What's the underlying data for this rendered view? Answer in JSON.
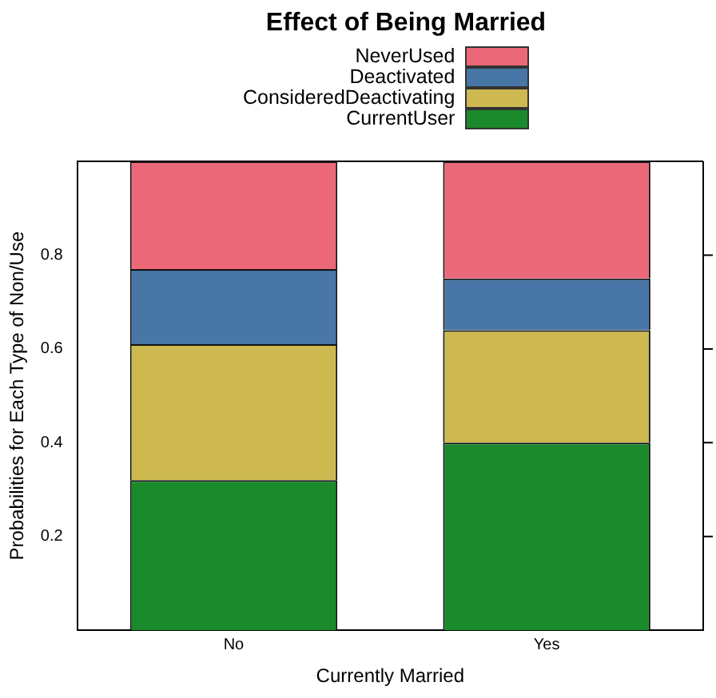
{
  "chart_data": {
    "type": "bar",
    "title": "Effect of Being Married",
    "xlabel": "Currently Married",
    "ylabel": "Probabilities for Each Type of Non/Use",
    "categories": [
      "No",
      "Yes"
    ],
    "stacked": true,
    "ylim": [
      0,
      1
    ],
    "yticks": [
      0.2,
      0.4,
      0.6,
      0.8
    ],
    "grid": false,
    "legend": "top",
    "series": [
      {
        "name": "CurrentUser",
        "color": "#1b8a2c",
        "values": [
          0.32,
          0.4
        ]
      },
      {
        "name": "ConsideredDeactivating",
        "color": "#cdb94f",
        "values": [
          0.29,
          0.24
        ]
      },
      {
        "name": "Deactivated",
        "color": "#4876a6",
        "values": [
          0.16,
          0.11
        ]
      },
      {
        "name": "NeverUsed",
        "color": "#eb6879",
        "values": [
          0.23,
          0.25
        ]
      }
    ]
  }
}
